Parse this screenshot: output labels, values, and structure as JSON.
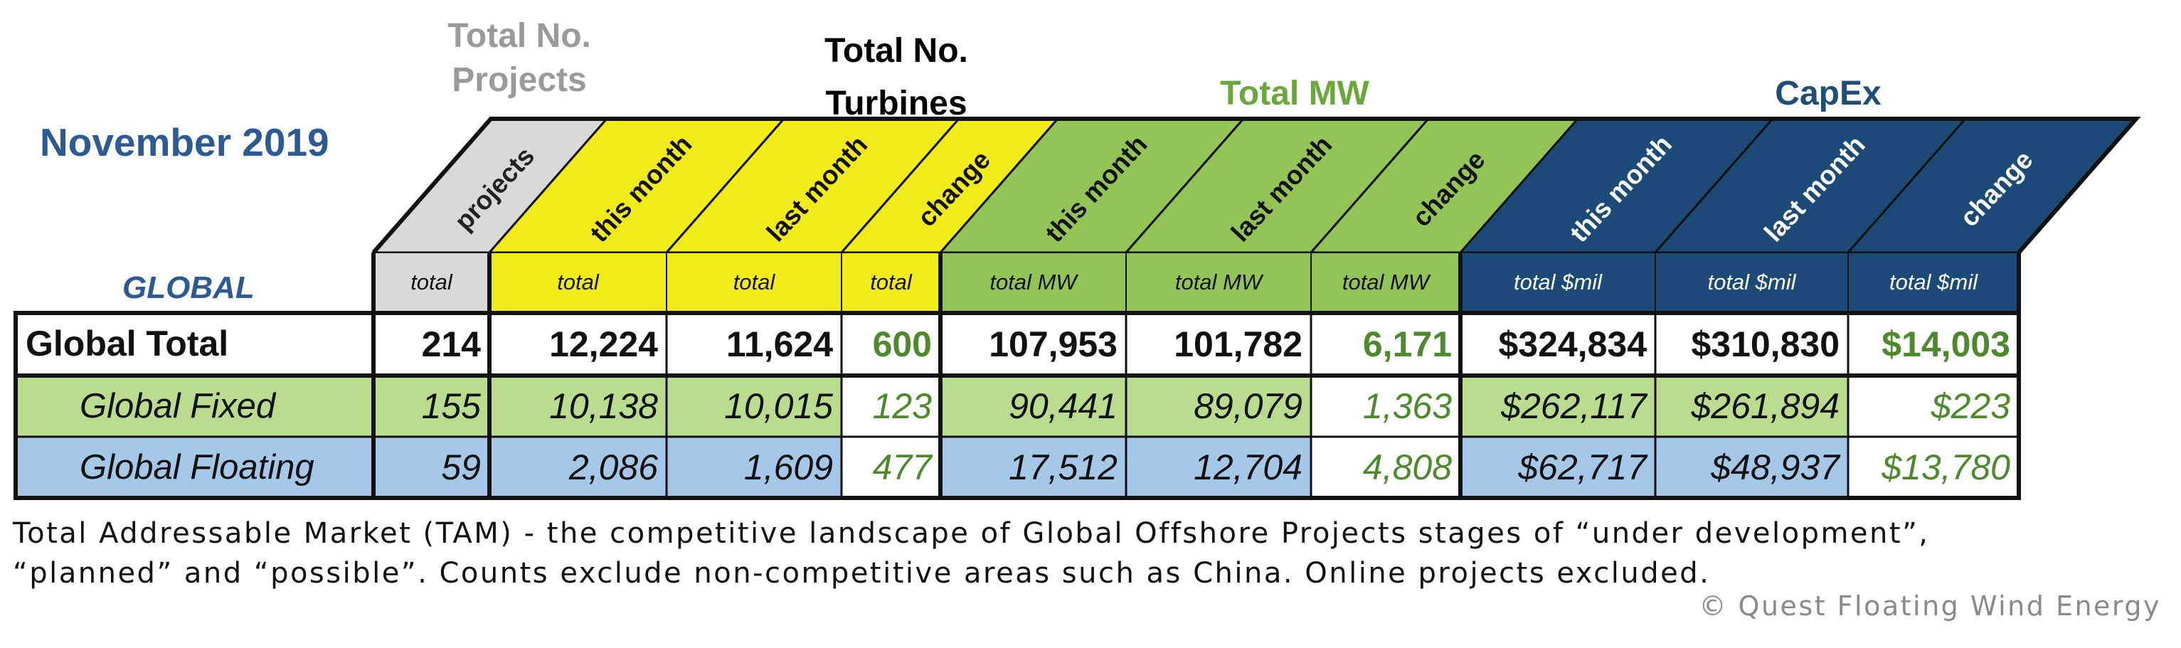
{
  "date_label": "November 2019",
  "scope_label": "GLOBAL",
  "groups": [
    {
      "label": "Total No. Projects",
      "color": "#9a9a9a"
    },
    {
      "label": "Total No. Turbines",
      "color": "#000000"
    },
    {
      "label": "Total MW",
      "color": "#6aa83c"
    },
    {
      "label": "CapEx",
      "color": "#1f4e79"
    }
  ],
  "columns": [
    {
      "header": "projects",
      "unit": "total"
    },
    {
      "header": "this month",
      "unit": "total"
    },
    {
      "header": "last month",
      "unit": "total"
    },
    {
      "header": "change",
      "unit": "total"
    },
    {
      "header": "this month",
      "unit": "total MW"
    },
    {
      "header": "last month",
      "unit": "total MW"
    },
    {
      "header": "change",
      "unit": "total MW"
    },
    {
      "header": "this month",
      "unit": "total $mil"
    },
    {
      "header": "last month",
      "unit": "total $mil"
    },
    {
      "header": "change",
      "unit": "total $mil"
    }
  ],
  "chart_data": {
    "type": "table",
    "rows": [
      {
        "label": "Global Total",
        "values": [
          "214",
          "12,224",
          "11,624",
          "600",
          "107,953",
          "101,782",
          "6,171",
          "$324,834",
          "$310,830",
          "$14,003"
        ]
      },
      {
        "label": "Global Fixed",
        "values": [
          "155",
          "10,138",
          "10,015",
          "123",
          "90,441",
          "89,079",
          "1,363",
          "$262,117",
          "$261,894",
          "$223"
        ]
      },
      {
        "label": "Global Floating",
        "values": [
          "59",
          "2,086",
          "1,609",
          "477",
          "17,512",
          "12,704",
          "4,808",
          "$62,717",
          "$48,937",
          "$13,780"
        ]
      }
    ]
  },
  "footnote_lines": [
    "Total Addressable Market (TAM) - the competitive landscape of Global Offshore Projects stages  of “under development”,",
    "“planned” and “possible”. Counts exclude non-competitive areas such as China. Online projects excluded."
  ],
  "copyright": "© Quest Floating Wind Energy",
  "colors": {
    "grey": "#d9d9d9",
    "yellow": "#f2eb1a",
    "green": "#92c556",
    "light_green": "#b9dc8f",
    "blue": "#1b4a76",
    "light_blue": "#a6c8e8",
    "change_green": "#4c8a2c",
    "title_blue": "#2c5a93"
  }
}
